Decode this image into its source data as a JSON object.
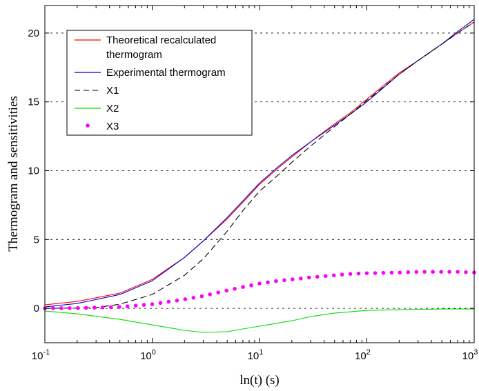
{
  "chart_data": {
    "type": "line",
    "xlabel": "ln(t)  (s)",
    "ylabel": "Thermogram and sensitivities",
    "x_scale": "log",
    "xlim": [
      0.1,
      1000
    ],
    "ylim": [
      -2.5,
      22
    ],
    "x_ticks": [
      {
        "base": "10",
        "exp": "-1"
      },
      {
        "base": "10",
        "exp": "0"
      },
      {
        "base": "10",
        "exp": "1"
      },
      {
        "base": "10",
        "exp": "2"
      },
      {
        "base": "10",
        "exp": "3"
      }
    ],
    "y_ticks": [
      "0",
      "5",
      "10",
      "15",
      "20"
    ],
    "grid": "horizontal dashed",
    "legend_position": "top-left",
    "series": [
      {
        "name": "Theoretical recalculated thermogram",
        "color": "#ff0000",
        "style": "solid",
        "x": [
          0.1,
          0.2,
          0.5,
          1,
          2,
          3,
          5,
          7,
          10,
          15,
          20,
          30,
          50,
          70,
          100,
          200,
          300,
          500,
          700,
          1000
        ],
        "y": [
          0.25,
          0.5,
          1.1,
          2.1,
          3.7,
          4.9,
          6.5,
          7.7,
          9.0,
          10.2,
          11.0,
          12.1,
          13.4,
          14.2,
          15.2,
          17.1,
          18.0,
          19.2,
          20.0,
          20.8
        ]
      },
      {
        "name": "Experimental thermogram",
        "color": "#0000cc",
        "style": "solid",
        "x": [
          0.1,
          0.2,
          0.5,
          1,
          2,
          3,
          5,
          7,
          10,
          15,
          20,
          30,
          50,
          70,
          100,
          200,
          300,
          500,
          700,
          1000
        ],
        "y": [
          0.1,
          0.35,
          1.0,
          2.0,
          3.7,
          4.9,
          6.6,
          7.8,
          9.1,
          10.3,
          11.1,
          12.1,
          13.3,
          14.1,
          15.0,
          17.0,
          18.0,
          19.2,
          20.1,
          21.0
        ]
      },
      {
        "name": "X1",
        "color": "#000000",
        "style": "dashed",
        "x": [
          0.1,
          0.2,
          0.3,
          0.5,
          1,
          2,
          3,
          5,
          7,
          10,
          15,
          20,
          30,
          50,
          70,
          100,
          200,
          300,
          500,
          700,
          1000
        ],
        "y": [
          0.0,
          0.02,
          0.05,
          0.3,
          1.0,
          2.4,
          3.6,
          5.6,
          7.1,
          8.5,
          9.7,
          10.6,
          11.8,
          13.2,
          14.1,
          15.1,
          17.0,
          18.0,
          19.2,
          20.0,
          20.8
        ]
      },
      {
        "name": "X2",
        "color": "#00dd00",
        "style": "solid",
        "x": [
          0.1,
          0.2,
          0.5,
          1,
          2,
          3,
          5,
          7,
          10,
          20,
          30,
          50,
          100,
          200,
          500,
          1000
        ],
        "y": [
          -0.2,
          -0.4,
          -0.8,
          -1.2,
          -1.6,
          -1.75,
          -1.7,
          -1.5,
          -1.3,
          -0.9,
          -0.6,
          -0.35,
          -0.15,
          -0.1,
          -0.05,
          -0.05
        ]
      },
      {
        "name": "X3",
        "color": "#ff00ff",
        "style": "dots",
        "x": [
          0.1,
          0.2,
          0.5,
          1,
          2,
          3,
          5,
          7,
          10,
          15,
          20,
          30,
          50,
          70,
          100,
          200,
          300,
          500,
          700,
          1000
        ],
        "y": [
          0.0,
          0.02,
          0.1,
          0.3,
          0.65,
          0.9,
          1.3,
          1.55,
          1.8,
          2.0,
          2.1,
          2.25,
          2.4,
          2.5,
          2.55,
          2.6,
          2.65,
          2.65,
          2.65,
          2.6
        ]
      }
    ]
  }
}
